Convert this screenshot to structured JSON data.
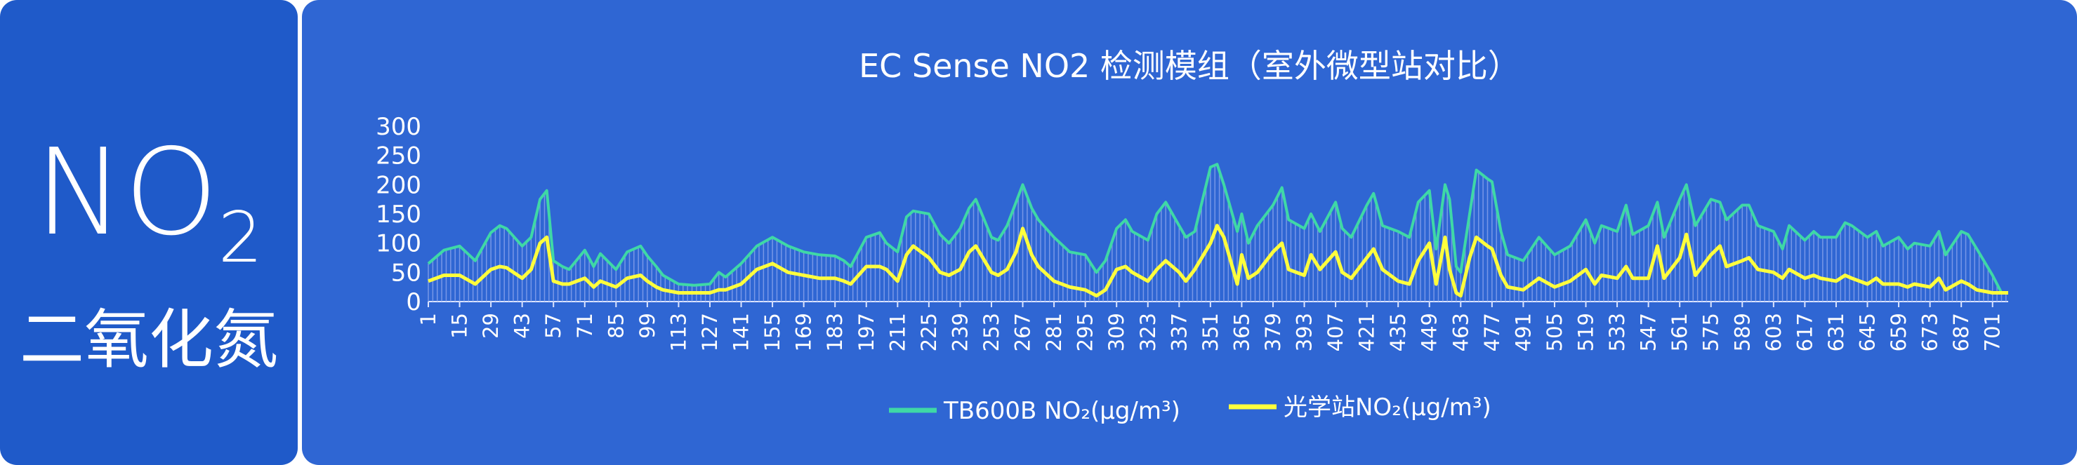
{
  "panel": {
    "formula_main": "NO",
    "formula_sub": "2",
    "chinese_name": "二氧化氮"
  },
  "colors": {
    "left_bg": "#1f5ac9",
    "right_bg": "#2f66d3",
    "series1": "#3fd8a6",
    "series1_fill": "#8fa8ee",
    "series2": "#ffff3c"
  },
  "chart_data": {
    "type": "line",
    "title": "EC Sense NO2 检测模组（室外微型站对比）",
    "ylim": [
      0,
      300
    ],
    "yticks": [
      0,
      50,
      100,
      150,
      200,
      250,
      300
    ],
    "xlim": [
      1,
      708
    ],
    "xticks": [
      1,
      15,
      29,
      43,
      57,
      71,
      85,
      99,
      113,
      127,
      141,
      155,
      169,
      183,
      197,
      211,
      225,
      239,
      253,
      267,
      281,
      295,
      309,
      323,
      337,
      351,
      365,
      379,
      393,
      407,
      421,
      435,
      449,
      463,
      477,
      491,
      505,
      519,
      533,
      547,
      561,
      575,
      589,
      603,
      617,
      631,
      645,
      659,
      673,
      687,
      701
    ],
    "legend_position": "bottom",
    "series": [
      {
        "name": "TB600B NO₂(μg/m³)",
        "x": [
          1,
          8,
          15,
          22,
          29,
          33,
          36,
          43,
          47,
          51,
          54,
          57,
          61,
          64,
          71,
          75,
          78,
          85,
          90,
          96,
          99,
          103,
          106,
          113,
          120,
          127,
          131,
          134,
          141,
          148,
          155,
          162,
          169,
          176,
          183,
          187,
          190,
          197,
          203,
          206,
          211,
          215,
          218,
          225,
          230,
          234,
          239,
          243,
          246,
          253,
          256,
          260,
          264,
          267,
          271,
          274,
          281,
          288,
          295,
          300,
          304,
          309,
          313,
          316,
          323,
          327,
          331,
          337,
          340,
          344,
          351,
          354,
          357,
          363,
          365,
          368,
          372,
          379,
          383,
          386,
          393,
          396,
          400,
          407,
          410,
          414,
          421,
          424,
          428,
          435,
          440,
          444,
          449,
          452,
          456,
          458,
          461,
          463,
          467,
          470,
          475,
          477,
          481,
          484,
          491,
          498,
          505,
          512,
          519,
          523,
          526,
          533,
          537,
          540,
          547,
          551,
          554,
          561,
          564,
          568,
          575,
          579,
          582,
          589,
          592,
          596,
          603,
          607,
          610,
          617,
          621,
          624,
          631,
          635,
          638,
          645,
          649,
          652,
          659,
          663,
          666,
          673,
          677,
          680,
          687,
          690,
          694,
          701,
          705,
          708
        ],
        "values": [
          65,
          88,
          95,
          70,
          118,
          130,
          125,
          95,
          110,
          175,
          190,
          70,
          60,
          55,
          88,
          60,
          82,
          55,
          85,
          95,
          78,
          60,
          45,
          30,
          28,
          30,
          50,
          42,
          65,
          95,
          110,
          95,
          85,
          80,
          78,
          70,
          60,
          110,
          118,
          100,
          85,
          145,
          155,
          150,
          115,
          100,
          125,
          160,
          175,
          110,
          105,
          130,
          170,
          200,
          160,
          140,
          110,
          85,
          80,
          50,
          70,
          125,
          140,
          120,
          105,
          150,
          170,
          130,
          110,
          120,
          230,
          235,
          200,
          120,
          150,
          100,
          130,
          165,
          195,
          140,
          125,
          150,
          120,
          170,
          125,
          110,
          165,
          185,
          130,
          120,
          110,
          170,
          190,
          90,
          200,
          175,
          60,
          50,
          150,
          225,
          210,
          205,
          120,
          80,
          70,
          110,
          80,
          95,
          140,
          100,
          130,
          120,
          165,
          115,
          130,
          170,
          110,
          175,
          200,
          130,
          175,
          170,
          140,
          165,
          165,
          130,
          120,
          90,
          130,
          105,
          120,
          110,
          110,
          135,
          130,
          110,
          120,
          95,
          110,
          90,
          100,
          95,
          120,
          80,
          120,
          115,
          90,
          45,
          15,
          15
        ]
      },
      {
        "name": "光学站NO₂(μg/m³)",
        "x": [
          1,
          8,
          15,
          22,
          29,
          33,
          36,
          43,
          47,
          51,
          54,
          57,
          61,
          64,
          71,
          75,
          78,
          85,
          90,
          96,
          99,
          103,
          106,
          113,
          120,
          127,
          131,
          134,
          141,
          148,
          155,
          162,
          169,
          176,
          183,
          187,
          190,
          197,
          203,
          206,
          211,
          215,
          218,
          225,
          230,
          234,
          239,
          243,
          246,
          253,
          256,
          260,
          264,
          267,
          271,
          274,
          281,
          288,
          295,
          300,
          304,
          309,
          313,
          316,
          323,
          327,
          331,
          337,
          340,
          344,
          351,
          354,
          357,
          363,
          365,
          368,
          372,
          379,
          383,
          386,
          393,
          396,
          400,
          407,
          410,
          414,
          421,
          424,
          428,
          435,
          440,
          444,
          449,
          452,
          456,
          458,
          461,
          463,
          467,
          470,
          475,
          477,
          481,
          484,
          491,
          498,
          505,
          512,
          519,
          523,
          526,
          533,
          537,
          540,
          547,
          551,
          554,
          561,
          564,
          568,
          575,
          579,
          582,
          589,
          592,
          596,
          603,
          607,
          610,
          617,
          621,
          624,
          631,
          635,
          638,
          645,
          649,
          652,
          659,
          663,
          666,
          673,
          677,
          680,
          687,
          690,
          694,
          701,
          705,
          708
        ],
        "values": [
          35,
          45,
          45,
          30,
          55,
          60,
          58,
          40,
          55,
          100,
          110,
          35,
          30,
          30,
          40,
          25,
          35,
          25,
          40,
          45,
          35,
          25,
          20,
          15,
          15,
          15,
          20,
          20,
          30,
          55,
          65,
          50,
          45,
          40,
          40,
          35,
          30,
          60,
          60,
          55,
          35,
          80,
          95,
          75,
          50,
          45,
          55,
          85,
          95,
          50,
          45,
          55,
          85,
          125,
          80,
          60,
          35,
          25,
          20,
          10,
          20,
          55,
          60,
          50,
          35,
          55,
          70,
          50,
          35,
          55,
          100,
          130,
          110,
          30,
          80,
          40,
          50,
          85,
          100,
          55,
          45,
          80,
          55,
          85,
          50,
          40,
          75,
          90,
          55,
          35,
          30,
          70,
          100,
          30,
          110,
          55,
          15,
          10,
          75,
          110,
          95,
          90,
          45,
          25,
          20,
          40,
          25,
          35,
          55,
          30,
          45,
          40,
          60,
          40,
          40,
          95,
          40,
          75,
          115,
          45,
          80,
          95,
          60,
          70,
          75,
          55,
          50,
          40,
          55,
          40,
          45,
          40,
          35,
          45,
          40,
          30,
          40,
          30,
          30,
          25,
          30,
          25,
          40,
          20,
          35,
          30,
          20,
          15,
          15,
          15
        ]
      }
    ]
  }
}
